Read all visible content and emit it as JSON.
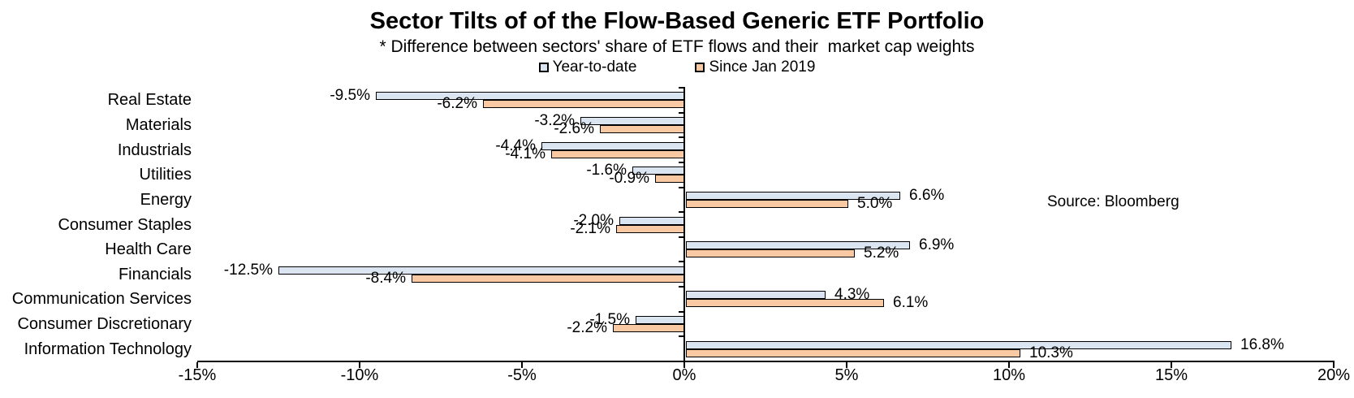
{
  "header": {
    "title": "Sector Tilts of of the Flow-Based Generic ETF Portfolio",
    "subtitle": "* Difference between sectors' share of ETF flows and their  market cap weights"
  },
  "source_note": "Source: Bloomberg",
  "chart_data": {
    "type": "bar",
    "orientation": "horizontal",
    "title": "Sector Tilts of of the Flow-Based Generic ETF Portfolio",
    "subtitle": "* Difference between sectors' share of ETF flows and their  market cap weights",
    "legend_position": "top",
    "grid": false,
    "xlim": [
      -15,
      20
    ],
    "x_tick_values": [
      -15,
      -10,
      -5,
      0,
      5,
      10,
      15,
      20
    ],
    "x_tick_labels": [
      "-15%",
      "-10%",
      "-5%",
      "0%",
      "5%",
      "10%",
      "15%",
      "20%"
    ],
    "categories": [
      "Real Estate",
      "Materials",
      "Industrials",
      "Utilities",
      "Energy",
      "Consumer Staples",
      "Health Care",
      "Financials",
      "Communication Services",
      "Consumer Discretionary",
      "Information Technology"
    ],
    "series": [
      {
        "name": "Year-to-date",
        "color": "#dbe5f1",
        "values": [
          -9.5,
          -3.2,
          -4.4,
          -1.6,
          6.6,
          -2.0,
          6.9,
          -12.5,
          4.3,
          -1.5,
          16.8
        ],
        "labels": [
          "-9.5%",
          "-3.2%",
          "-4.4%",
          "-1.6%",
          "6.6%",
          "-2.0%",
          "6.9%",
          "-12.5%",
          "4.3%",
          "-1.5%",
          "16.8%"
        ]
      },
      {
        "name": "Since Jan 2019",
        "color": "#f9c9a3",
        "values": [
          -6.2,
          -2.6,
          -4.1,
          -0.9,
          5.0,
          -2.1,
          5.2,
          -8.4,
          6.1,
          -2.2,
          10.3
        ],
        "labels": [
          "-6.2%",
          "-2.6%",
          "-4.1%",
          "-0.9%",
          "5.0%",
          "-2.1%",
          "5.2%",
          "-8.4%",
          "6.1%",
          "-2.2%",
          "10.3%"
        ]
      }
    ]
  }
}
